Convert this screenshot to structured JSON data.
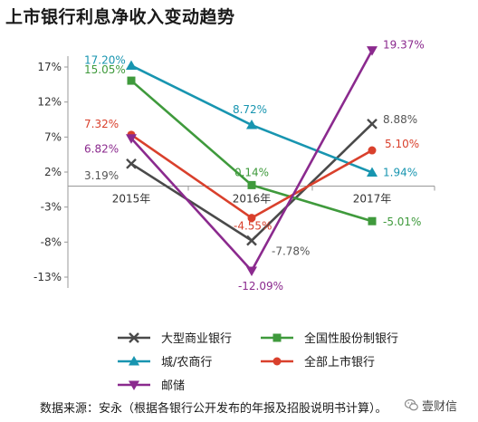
{
  "title": "上市银行利息净收入变动趋势",
  "source": "数据来源：安永（根据各银行公开发布的年报及招股说明书计算）。",
  "watermark": {
    "text": "壹财信",
    "icon": "wechat-icon"
  },
  "chart_data": {
    "type": "line",
    "categories": [
      "2015年",
      "2016年",
      "2017年"
    ],
    "ylim": [
      -13,
      17
    ],
    "yticks": [
      "17%",
      "12%",
      "7%",
      "2%",
      "-3%",
      "-8%",
      "-13%"
    ],
    "grid": false,
    "legend_position": "bottom",
    "series": [
      {
        "name": "大型商业银行",
        "values": [
          3.19,
          -7.78,
          8.88
        ],
        "labels": [
          "3.19%",
          "-7.78%",
          "8.88%"
        ],
        "color": "#4a4a4a",
        "marker": "x"
      },
      {
        "name": "全国性股份制银行",
        "values": [
          15.05,
          0.14,
          -5.01
        ],
        "labels": [
          "15.05%",
          "0.14%",
          "-5.01%"
        ],
        "color": "#3f9a3c",
        "marker": "square"
      },
      {
        "name": "城/农商行",
        "values": [
          17.2,
          8.72,
          1.94
        ],
        "labels": [
          "17.20%",
          "8.72%",
          "1.94%"
        ],
        "color": "#1895b0",
        "marker": "triangle-up"
      },
      {
        "name": "全部上市银行",
        "values": [
          7.32,
          -4.55,
          5.1
        ],
        "labels": [
          "7.32%",
          "-4.55%",
          "5.10%"
        ],
        "color": "#d9402c",
        "marker": "circle"
      },
      {
        "name": "邮储",
        "values": [
          6.82,
          -12.09,
          19.37
        ],
        "labels": [
          "6.82%",
          "-12.09%",
          "19.37%"
        ],
        "color": "#8b2a8e",
        "marker": "triangle-down"
      }
    ]
  }
}
